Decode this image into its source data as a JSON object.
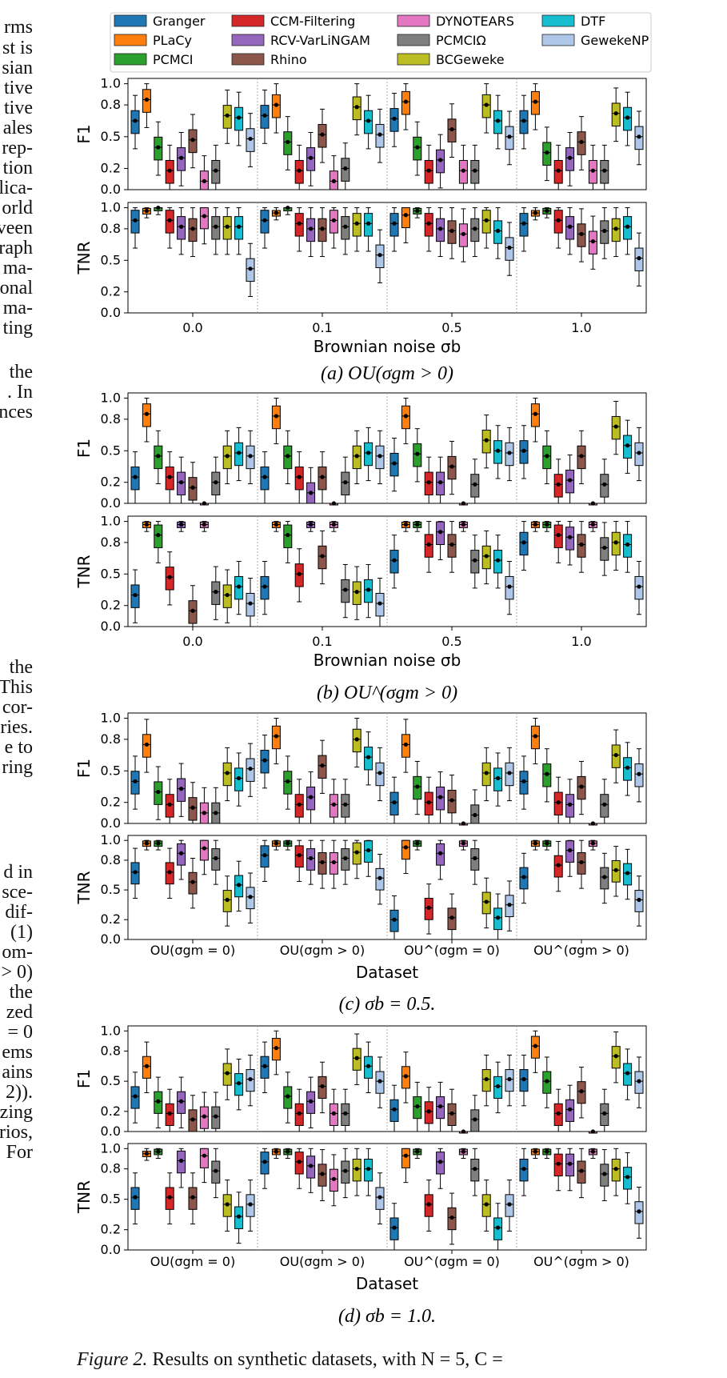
{
  "legend": {
    "methods": [
      {
        "name": "Granger",
        "color": "#1f77b4"
      },
      {
        "name": "PLaCy",
        "color": "#ff7f0e"
      },
      {
        "name": "PCMCI",
        "color": "#2ca02c"
      },
      {
        "name": "CCM-Filtering",
        "color": "#d62728"
      },
      {
        "name": "RCV-VarLiNGAM",
        "color": "#9467bd"
      },
      {
        "name": "Rhino",
        "color": "#8c564b"
      },
      {
        "name": "DYNOTEARS",
        "color": "#e377c2"
      },
      {
        "name": "PCMCIΩ",
        "color": "#7f7f7f"
      },
      {
        "name": "BCGeweke",
        "color": "#bcbd22"
      },
      {
        "name": "DTF",
        "color": "#17becf"
      },
      {
        "name": "GewekeNP",
        "color": "#aec7e8"
      }
    ]
  },
  "left_margin_text": [
    "rms",
    "st is",
    "sian",
    "tive",
    "tive",
    "ales",
    "rep-",
    "tion",
    "lica-",
    "orld",
    "veen",
    "raph",
    "ma-",
    "onal",
    "ma-",
    "ting",
    "the",
    ". In",
    "nces",
    "the",
    "This",
    "cor-",
    "ries.",
    "e to",
    "ring",
    "d in",
    "sce-",
    "dif-",
    "(1)",
    "om-",
    "> 0)",
    "the",
    "zed",
    "= 0",
    "ems",
    "ains",
    "2)).",
    "zing",
    "rios,",
    "For"
  ],
  "right_margin_text": [],
  "figure_caption": {
    "label": "Figure 2.",
    "text": "Results on synthetic datasets, with N = 5, C ="
  },
  "chart_data": [
    {
      "type": "box",
      "panel": "a",
      "caption": "(a) OU(σgm > 0)",
      "xlabel": "Brownian noise σb",
      "categories": [
        "0.0",
        "0.1",
        "0.5",
        "1.0"
      ],
      "subplots": [
        {
          "ylabel": "F1",
          "ylim": [
            0,
            1.05
          ],
          "yticks": [
            "0.0",
            "0.2",
            "0.5",
            "0.8",
            "1.0"
          ],
          "series_medians": [
            [
              0.65,
              0.85,
              0.4,
              0.18,
              0.3,
              0.47,
              0.08,
              0.18,
              0.7,
              0.68,
              0.48
            ],
            [
              0.7,
              0.8,
              0.45,
              0.18,
              0.3,
              0.52,
              0.08,
              0.2,
              0.78,
              0.65,
              0.52
            ],
            [
              0.67,
              0.83,
              0.4,
              0.18,
              0.28,
              0.57,
              0.18,
              0.18,
              0.8,
              0.65,
              0.5
            ],
            [
              0.65,
              0.83,
              0.35,
              0.18,
              0.3,
              0.45,
              0.18,
              0.18,
              0.72,
              0.68,
              0.5
            ]
          ]
        },
        {
          "ylabel": "TNR",
          "ylim": [
            0,
            1.05
          ],
          "yticks": [
            "0.0",
            "0.2",
            "0.5",
            "0.8",
            "1.0"
          ],
          "series_medians": [
            [
              0.88,
              0.97,
              1.0,
              0.88,
              0.82,
              0.8,
              0.92,
              0.82,
              0.82,
              0.82,
              0.42
            ],
            [
              0.88,
              0.95,
              1.0,
              0.85,
              0.8,
              0.8,
              0.88,
              0.82,
              0.85,
              0.85,
              0.55
            ],
            [
              0.85,
              0.93,
              0.97,
              0.85,
              0.8,
              0.78,
              0.75,
              0.8,
              0.88,
              0.78,
              0.62
            ],
            [
              0.85,
              0.95,
              0.97,
              0.88,
              0.82,
              0.75,
              0.68,
              0.78,
              0.8,
              0.82,
              0.52
            ]
          ]
        }
      ]
    },
    {
      "type": "box",
      "panel": "b",
      "caption": "(b) OU^(σgm > 0)",
      "xlabel": "Brownian noise σb",
      "categories": [
        "0.0",
        "0.1",
        "0.5",
        "1.0"
      ],
      "subplots": [
        {
          "ylabel": "F1",
          "ylim": [
            0,
            1.05
          ],
          "yticks": [
            "0.0",
            "0.2",
            "0.5",
            "0.8",
            "1.0"
          ],
          "series_medians": [
            [
              0.25,
              0.85,
              0.45,
              0.25,
              0.2,
              0.15,
              0.0,
              0.2,
              0.45,
              0.48,
              0.45
            ],
            [
              0.25,
              0.83,
              0.45,
              0.25,
              0.1,
              0.25,
              0.0,
              0.2,
              0.45,
              0.48,
              0.45
            ],
            [
              0.38,
              0.83,
              0.47,
              0.2,
              0.2,
              0.35,
              0.0,
              0.18,
              0.6,
              0.5,
              0.48
            ],
            [
              0.5,
              0.85,
              0.45,
              0.18,
              0.22,
              0.45,
              0.0,
              0.18,
              0.73,
              0.55,
              0.48
            ]
          ]
        },
        {
          "ylabel": "TNR",
          "ylim": [
            0,
            1.05
          ],
          "yticks": [
            "0.0",
            "0.2",
            "0.5",
            "0.8",
            "1.0"
          ],
          "series_medians": [
            [
              0.3,
              0.97,
              0.87,
              0.47,
              0.97,
              0.15,
              0.97,
              0.33,
              0.3,
              0.38,
              0.22
            ],
            [
              0.38,
              0.97,
              0.87,
              0.5,
              0.97,
              0.67,
              0.97,
              0.35,
              0.33,
              0.35,
              0.22
            ],
            [
              0.63,
              0.97,
              0.97,
              0.78,
              0.9,
              0.78,
              0.97,
              0.63,
              0.67,
              0.63,
              0.38
            ],
            [
              0.8,
              0.97,
              0.97,
              0.87,
              0.85,
              0.78,
              0.97,
              0.75,
              0.8,
              0.78,
              0.38
            ]
          ]
        }
      ]
    },
    {
      "type": "box",
      "panel": "c",
      "caption": "(c) σb = 0.5.",
      "xlabel": "Dataset",
      "categories": [
        "OU(σgm = 0)",
        "OU(σgm > 0)",
        "OU^(σgm = 0)",
        "OU^(σgm > 0)"
      ],
      "subplots": [
        {
          "ylabel": "F1",
          "ylim": [
            0,
            1.05
          ],
          "yticks": [
            "0.0",
            "0.2",
            "0.5",
            "0.8",
            "1.0"
          ],
          "series_medians": [
            [
              0.4,
              0.75,
              0.3,
              0.18,
              0.33,
              0.15,
              0.1,
              0.1,
              0.48,
              0.43,
              0.52
            ],
            [
              0.6,
              0.83,
              0.4,
              0.18,
              0.25,
              0.55,
              0.18,
              0.18,
              0.8,
              0.63,
              0.48
            ],
            [
              0.2,
              0.75,
              0.35,
              0.2,
              0.25,
              0.22,
              0.0,
              0.08,
              0.48,
              0.43,
              0.48
            ],
            [
              0.4,
              0.83,
              0.47,
              0.2,
              0.18,
              0.35,
              0.0,
              0.18,
              0.65,
              0.53,
              0.47
            ]
          ]
        },
        {
          "ylabel": "TNR",
          "ylim": [
            0,
            1.05
          ],
          "yticks": [
            "0.0",
            "0.2",
            "0.5",
            "0.8",
            "1.0"
          ],
          "series_medians": [
            [
              0.68,
              0.97,
              0.97,
              0.68,
              0.87,
              0.58,
              0.92,
              0.82,
              0.4,
              0.55,
              0.43
            ],
            [
              0.85,
              0.97,
              0.97,
              0.85,
              0.82,
              0.78,
              0.78,
              0.82,
              0.88,
              0.9,
              0.62
            ],
            [
              0.2,
              0.93,
              0.97,
              0.32,
              0.87,
              0.22,
              0.97,
              0.82,
              0.38,
              0.22,
              0.35
            ],
            [
              0.63,
              0.97,
              0.97,
              0.75,
              0.9,
              0.78,
              0.97,
              0.63,
              0.7,
              0.67,
              0.4
            ]
          ]
        }
      ]
    },
    {
      "type": "box",
      "panel": "d",
      "caption": "(d) σb = 1.0.",
      "xlabel": "Dataset",
      "categories": [
        "OU(σgm = 0)",
        "OU(σgm > 0)",
        "OU^(σgm = 0)",
        "OU^(σgm > 0)"
      ],
      "subplots": [
        {
          "ylabel": "F1",
          "ylim": [
            0,
            1.05
          ],
          "yticks": [
            "0.0",
            "0.2",
            "0.5",
            "0.8",
            "1.0"
          ],
          "series_medians": [
            [
              0.35,
              0.65,
              0.3,
              0.18,
              0.3,
              0.12,
              0.15,
              0.15,
              0.58,
              0.48,
              0.52
            ],
            [
              0.65,
              0.83,
              0.35,
              0.18,
              0.3,
              0.45,
              0.18,
              0.18,
              0.73,
              0.65,
              0.5
            ],
            [
              0.22,
              0.55,
              0.25,
              0.2,
              0.25,
              0.18,
              0.0,
              0.12,
              0.52,
              0.45,
              0.52
            ],
            [
              0.52,
              0.85,
              0.5,
              0.18,
              0.22,
              0.4,
              0.0,
              0.18,
              0.75,
              0.58,
              0.5
            ]
          ]
        },
        {
          "ylabel": "TNR",
          "ylim": [
            0,
            1.05
          ],
          "yticks": [
            "0.0",
            "0.2",
            "0.5",
            "0.8",
            "1.0"
          ],
          "series_medians": [
            [
              0.52,
              0.95,
              0.97,
              0.52,
              0.88,
              0.52,
              0.93,
              0.78,
              0.45,
              0.33,
              0.45
            ],
            [
              0.87,
              0.97,
              0.97,
              0.87,
              0.83,
              0.75,
              0.7,
              0.78,
              0.8,
              0.8,
              0.52
            ],
            [
              0.22,
              0.93,
              0.97,
              0.45,
              0.87,
              0.32,
              0.97,
              0.8,
              0.45,
              0.22,
              0.45
            ],
            [
              0.8,
              0.97,
              0.97,
              0.85,
              0.85,
              0.78,
              0.97,
              0.75,
              0.8,
              0.72,
              0.38
            ]
          ]
        }
      ]
    }
  ]
}
